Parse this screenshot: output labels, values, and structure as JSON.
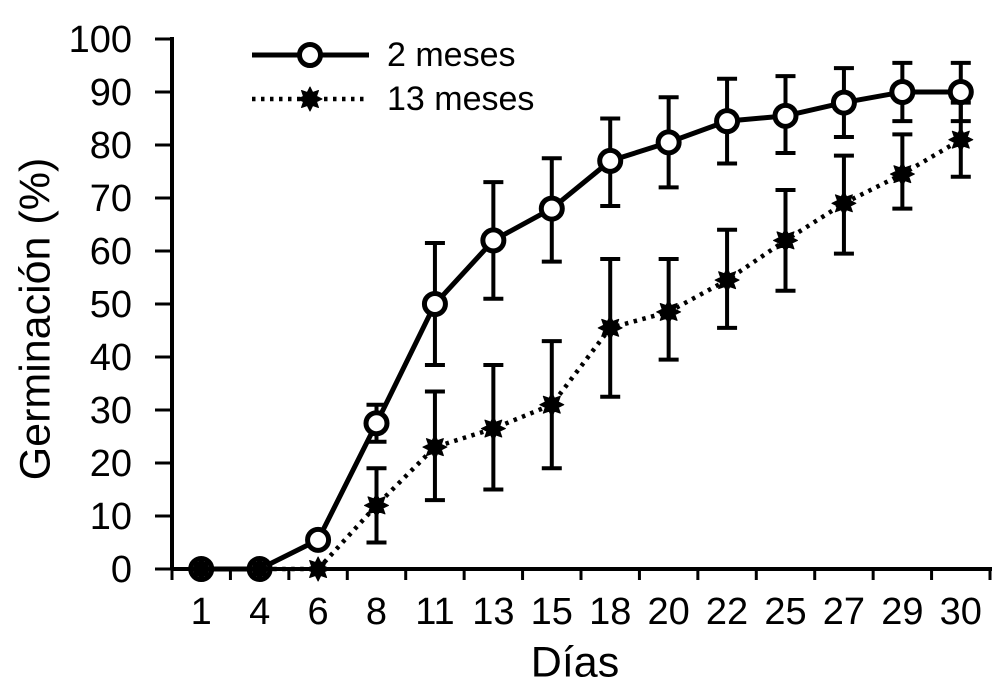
{
  "chart_data": {
    "type": "line",
    "title": "",
    "xlabel": "Días",
    "ylabel": "Germinación (%)",
    "x_categories": [
      "1",
      "4",
      "6",
      "8",
      "11",
      "13",
      "15",
      "18",
      "20",
      "22",
      "25",
      "27",
      "29",
      "30"
    ],
    "y_ticks": [
      0,
      10,
      20,
      30,
      40,
      50,
      60,
      70,
      80,
      90,
      100
    ],
    "ylim": [
      0,
      100
    ],
    "grid": false,
    "legend_position": "top-left-inside",
    "colors": {
      "foreground": "#000000",
      "background": "#ffffff"
    },
    "series": [
      {
        "name": "2 meses",
        "line_style": "solid",
        "marker": "open-circle",
        "values": [
          0,
          0,
          5.5,
          27.5,
          50,
          62,
          68,
          77,
          80.5,
          84.5,
          85.5,
          88,
          90,
          90
        ],
        "err_minus": [
          0,
          0,
          0,
          3.5,
          11.5,
          11,
          10,
          8.5,
          8.5,
          8,
          7,
          6.5,
          5.5,
          5.5
        ],
        "err_plus": [
          0,
          0,
          0,
          3.5,
          11.5,
          11,
          9.5,
          8,
          8.5,
          8,
          7.5,
          6.5,
          5.5,
          5.5
        ]
      },
      {
        "name": "13 meses",
        "line_style": "dotted",
        "marker": "filled-star",
        "values": [
          0,
          0,
          0,
          12,
          23,
          26.5,
          31,
          45.5,
          48.5,
          54.5,
          62,
          69,
          74.5,
          81
        ],
        "err_minus": [
          0,
          0,
          0,
          7,
          10,
          11.5,
          12,
          13,
          9,
          9,
          9.5,
          9.5,
          6.5,
          7
        ],
        "err_plus": [
          0,
          0,
          0,
          7,
          10.5,
          12,
          12,
          13,
          10,
          9.5,
          9.5,
          9,
          7.5,
          7
        ]
      }
    ]
  }
}
